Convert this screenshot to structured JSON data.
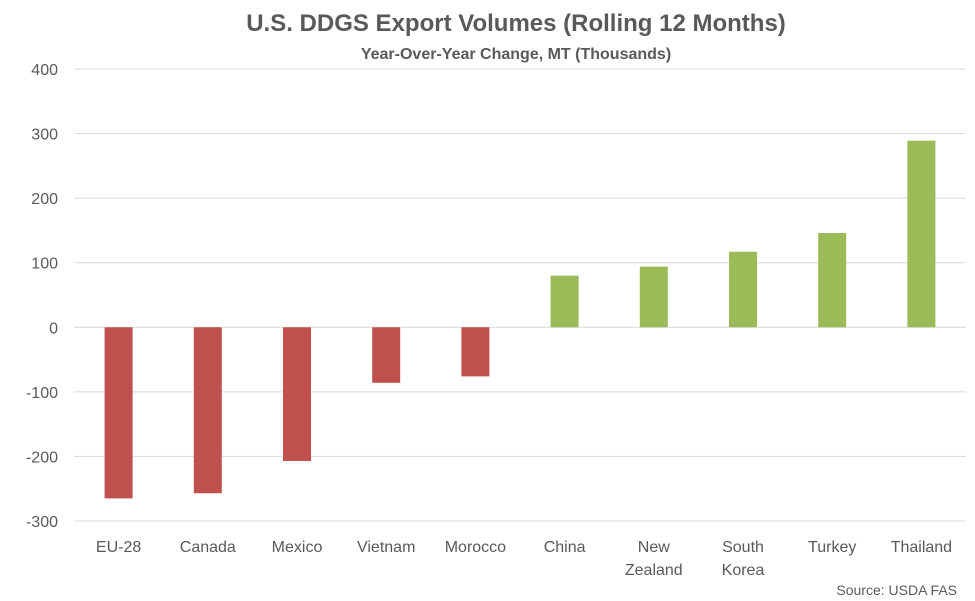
{
  "chart_data": {
    "type": "bar",
    "title": "U.S. DDGS Export Volumes (Rolling 12 Months)",
    "subtitle": "Year-Over-Year Change, MT (Thousands)",
    "categories": [
      [
        "EU-28"
      ],
      [
        "Canada"
      ],
      [
        "Mexico"
      ],
      [
        "Vietnam"
      ],
      [
        "Morocco"
      ],
      [
        "China"
      ],
      [
        "New",
        "Zealand"
      ],
      [
        "South",
        "Korea"
      ],
      [
        "Turkey"
      ],
      [
        "Thailand"
      ]
    ],
    "values": [
      -265,
      -257,
      -207,
      -86,
      -76,
      80,
      94,
      117,
      146,
      289
    ],
    "ylim": [
      -300,
      400
    ],
    "yticks": [
      400,
      300,
      200,
      100,
      0,
      -100,
      -200,
      -300
    ],
    "grid": true,
    "legend": "none",
    "colors": {
      "negative": "#c0504d",
      "positive": "#9bbb59"
    },
    "source": "Source: USDA FAS"
  }
}
